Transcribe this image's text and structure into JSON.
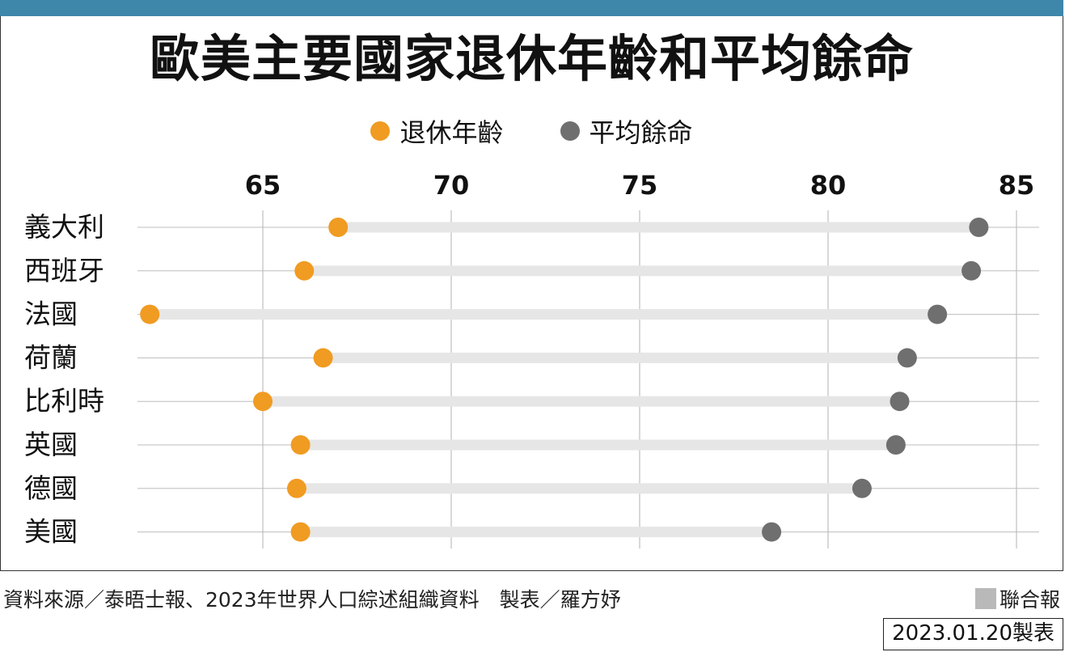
{
  "title": "歐美主要國家退休年齡和平均餘命",
  "legend": {
    "retirement": "退休年齡",
    "life_expectancy": "平均餘命"
  },
  "colors": {
    "retirement": "#f09b22",
    "life_expectancy": "#6f6f6f",
    "track": "#e6e6e6",
    "grid": "#bdbdbd",
    "top_bar": "#3f86ab"
  },
  "footer": {
    "source": "資料來源／泰晤士報、2023年世界人口綜述組織資料　製表／羅方妤",
    "brand": "聯合報",
    "date": "2023.01.20製表"
  },
  "chart_data": {
    "type": "dumbbell",
    "xlim": [
      62.5,
      85.6
    ],
    "xticks": [
      65,
      70,
      75,
      80,
      85
    ],
    "categories": [
      "義大利",
      "西班牙",
      "法國",
      "荷蘭",
      "比利時",
      "英國",
      "德國",
      "美國"
    ],
    "series": [
      {
        "name": "退休年齡",
        "values": [
          67.0,
          66.1,
          62.0,
          66.6,
          65.0,
          66.0,
          65.9,
          66.0
        ]
      },
      {
        "name": "平均餘命",
        "values": [
          84.0,
          83.8,
          82.9,
          82.1,
          81.9,
          81.8,
          80.9,
          78.5
        ]
      }
    ],
    "grid": true,
    "legend_position": "top"
  }
}
